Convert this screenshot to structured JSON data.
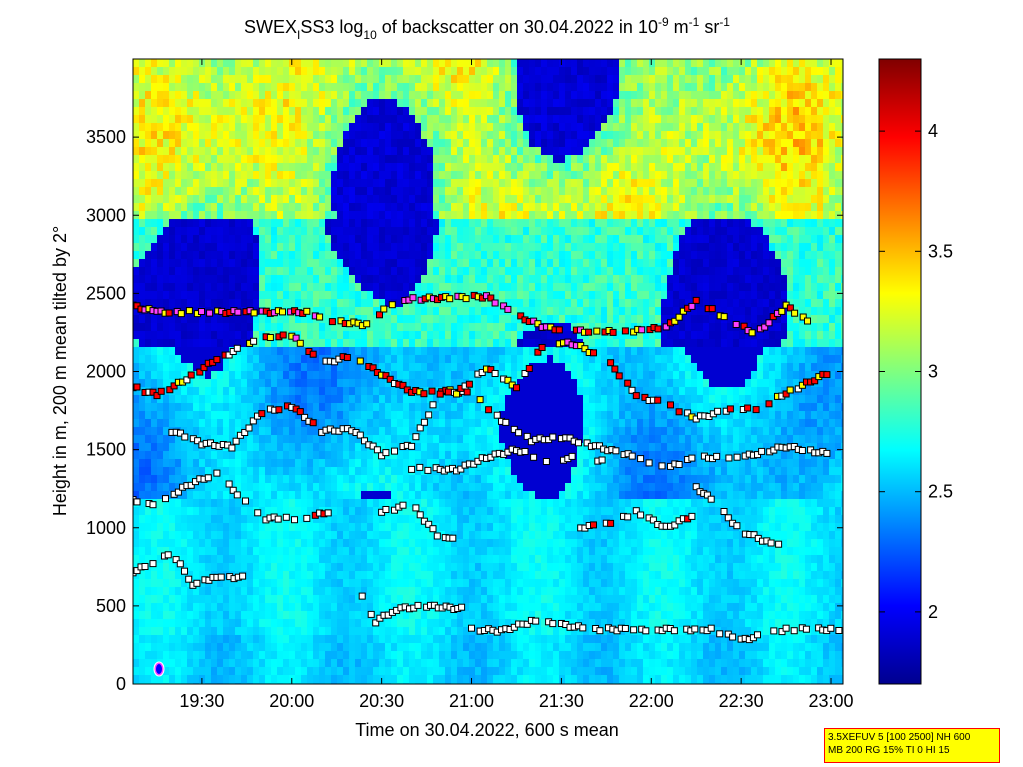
{
  "chart_data": {
    "type": "heatmap",
    "title_parts": {
      "a": "SWEX",
      "b": "I",
      "c": "SS3 log",
      "d": "10",
      "e": " of backscatter on 30.04.2022 in 10",
      "f": "-9",
      "g": " m",
      "h": "-1",
      "i": " sr",
      "j": "-1"
    },
    "xlabel": "Time on 30.04.2022, 600 s mean",
    "ylabel": "Height in m, 200 m mean tilted by 2°",
    "x_range": [
      "19:07",
      "23:04"
    ],
    "y_range": [
      0,
      4000
    ],
    "x_ticks": [
      "19:30",
      "20:00",
      "20:30",
      "21:00",
      "21:30",
      "22:00",
      "22:30",
      "23:00"
    ],
    "y_ticks": [
      "0",
      "500",
      "1000",
      "1500",
      "2000",
      "2500",
      "3000",
      "3500"
    ],
    "colorbar": {
      "range": [
        1.7,
        4.3
      ],
      "ticks": [
        "2",
        "2.5",
        "3",
        "3.5",
        "4"
      ]
    },
    "layers": [
      {
        "points": [
          [
            "19:07",
            1180
          ],
          [
            "19:15",
            1150
          ],
          [
            "19:25",
            1270
          ],
          [
            "19:35",
            1350
          ],
          [
            "19:50",
            1060
          ],
          [
            "20:05",
            1060
          ],
          [
            "20:15",
            1120
          ]
        ]
      },
      {
        "points": [
          [
            "19:07",
            720
          ],
          [
            "19:15",
            780
          ],
          [
            "19:20",
            840
          ],
          [
            "19:27",
            640
          ],
          [
            "19:35",
            690
          ],
          [
            "19:45",
            680
          ]
        ]
      },
      {
        "points": [
          [
            "20:22",
            610
          ],
          [
            "20:28",
            400
          ],
          [
            "20:35",
            480
          ],
          [
            "20:45",
            500
          ],
          [
            "20:58",
            480
          ]
        ]
      },
      {
        "points": [
          [
            "20:30",
            1100
          ],
          [
            "20:40",
            1150
          ],
          [
            "20:50",
            920
          ],
          [
            "20:55",
            950
          ]
        ]
      },
      {
        "points": [
          [
            "21:00",
            350
          ],
          [
            "21:10",
            340
          ],
          [
            "21:20",
            400
          ],
          [
            "21:30",
            380
          ],
          [
            "21:40",
            350
          ],
          [
            "21:50",
            350
          ],
          [
            "22:05",
            350
          ],
          [
            "22:20",
            350
          ],
          [
            "22:30",
            280
          ],
          [
            "22:45",
            350
          ],
          [
            "23:04",
            350
          ]
        ]
      },
      {
        "points": [
          [
            "21:35",
            1000
          ],
          [
            "21:45",
            1020
          ],
          [
            "21:55",
            1100
          ],
          [
            "22:05",
            1000
          ],
          [
            "22:15",
            1090
          ]
        ]
      },
      {
        "points": [
          [
            "22:15",
            1260
          ],
          [
            "22:20",
            1180
          ],
          [
            "22:30",
            980
          ],
          [
            "22:40",
            900
          ],
          [
            "22:45",
            890
          ]
        ]
      },
      {
        "points": [
          [
            "20:40",
            1380
          ],
          [
            "20:55",
            1370
          ],
          [
            "21:05",
            1450
          ],
          [
            "21:15",
            1500
          ],
          [
            "21:25",
            1430
          ],
          [
            "21:35",
            1450
          ],
          [
            "21:45",
            1420
          ]
        ]
      },
      {
        "points": [
          [
            "19:20",
            1620
          ],
          [
            "19:30",
            1540
          ],
          [
            "19:40",
            1520
          ],
          [
            "19:50",
            1740
          ],
          [
            "20:00",
            1780
          ],
          [
            "20:10",
            1620
          ],
          [
            "20:20",
            1630
          ],
          [
            "20:30",
            1470
          ],
          [
            "20:40",
            1530
          ],
          [
            "20:50",
            1880
          ],
          [
            "21:00",
            1860
          ],
          [
            "21:10",
            1690
          ],
          [
            "21:20",
            1560
          ],
          [
            "21:30",
            1580
          ],
          [
            "21:40",
            1530
          ],
          [
            "21:55",
            1450
          ],
          [
            "22:05",
            1380
          ],
          [
            "22:15",
            1450
          ],
          [
            "22:30",
            1450
          ],
          [
            "22:45",
            1520
          ],
          [
            "23:00",
            1470
          ]
        ]
      },
      {
        "points": [
          [
            "19:07",
            1900
          ],
          [
            "19:15",
            1850
          ],
          [
            "19:25",
            1950
          ],
          [
            "19:35",
            2080
          ],
          [
            "19:50",
            2210
          ],
          [
            "20:00",
            2230
          ],
          [
            "20:10",
            2050
          ],
          [
            "20:20",
            2100
          ],
          [
            "20:30",
            1980
          ],
          [
            "20:40",
            1870
          ],
          [
            "20:55",
            1860
          ],
          [
            "21:05",
            2020
          ],
          [
            "21:15",
            1900
          ],
          [
            "21:25",
            2200
          ],
          [
            "21:35",
            2170
          ],
          [
            "21:45",
            2080
          ],
          [
            "21:55",
            1850
          ],
          [
            "22:05",
            1790
          ],
          [
            "22:15",
            1700
          ],
          [
            "22:25",
            1750
          ],
          [
            "22:35",
            1760
          ],
          [
            "22:45",
            1860
          ],
          [
            "23:00",
            2000
          ]
        ]
      },
      {
        "points": [
          [
            "19:07",
            2420
          ],
          [
            "19:15",
            2380
          ],
          [
            "20:05",
            2380
          ],
          [
            "20:15",
            2320
          ],
          [
            "20:25",
            2300
          ],
          [
            "20:35",
            2460
          ],
          [
            "21:05",
            2480
          ],
          [
            "21:15",
            2360
          ],
          [
            "21:25",
            2280
          ],
          [
            "21:35",
            2260
          ],
          [
            "21:50",
            2250
          ],
          [
            "22:05",
            2280
          ],
          [
            "22:15",
            2450
          ],
          [
            "22:35",
            2240
          ],
          [
            "22:45",
            2420
          ],
          [
            "22:55",
            2280
          ]
        ]
      }
    ]
  },
  "info_box": {
    "line1": "3.5XEFUV 5 [100 2500] NH 600",
    "line2": "MB 200 RG 15% TI 0 HI 15"
  }
}
